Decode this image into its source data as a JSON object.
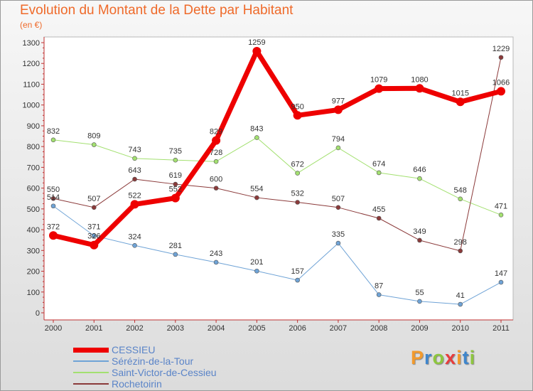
{
  "title": "Evolution du Montant de la Dette par Habitant",
  "unit_label": "(en €)",
  "logo": {
    "text": "Proxiti",
    "colors": [
      "#f39a2c",
      "#3f86cc",
      "#8ec63f",
      "#e83c3c",
      "#f39a2c",
      "#3f86cc",
      "#8ec63f"
    ]
  },
  "chart_data": {
    "type": "line",
    "title": "Evolution du Montant de la Dette par Habitant",
    "ylabel": "(en €)",
    "xlabel": "",
    "x": [
      "2000",
      "2001",
      "2002",
      "2003",
      "2004",
      "2005",
      "2006",
      "2007",
      "2008",
      "2009",
      "2010",
      "2011"
    ],
    "ylim": [
      0,
      1300
    ],
    "yticks": [
      0,
      100,
      200,
      300,
      400,
      500,
      600,
      700,
      800,
      900,
      1000,
      1100,
      1200,
      1300
    ],
    "grid": false,
    "legend_position": "bottom-left",
    "series": [
      {
        "name": "CESSIEU",
        "color": "#ee0000",
        "width": 7,
        "values": [
          372,
          326,
          522,
          552,
          829,
          1259,
          950,
          977,
          1079,
          1080,
          1015,
          1066
        ],
        "labels": [
          "372",
          "326",
          "522",
          "552",
          "829",
          "1259",
          "950",
          "977",
          "1079",
          "1080",
          "1015",
          "1066"
        ]
      },
      {
        "name": "Sérézin-de-la-Tour",
        "color": "#6fa3d6",
        "width": 1,
        "values": [
          514,
          371,
          324,
          281,
          243,
          201,
          157,
          335,
          87,
          55,
          41,
          147
        ],
        "labels": [
          "514",
          "371",
          "324",
          "281",
          "243",
          "201",
          "157",
          "335",
          "87",
          "55",
          "41",
          "147"
        ]
      },
      {
        "name": "Saint-Victor-de-Cessieu",
        "color": "#a3e070",
        "width": 1,
        "values": [
          832,
          809,
          743,
          735,
          728,
          843,
          672,
          794,
          674,
          646,
          548,
          471
        ],
        "labels": [
          "832",
          "809",
          "743",
          "735",
          "728",
          "843",
          "672",
          "794",
          "674",
          "646",
          "548",
          "471"
        ]
      },
      {
        "name": "Rochetoirin",
        "color": "#8b3a3a",
        "width": 1,
        "values": [
          550,
          507,
          643,
          619,
          600,
          554,
          532,
          507,
          455,
          349,
          298,
          1229
        ],
        "labels": [
          "550",
          "507",
          "643",
          "619",
          "600",
          "554",
          "532",
          "507",
          "455",
          "349",
          "298",
          "1229"
        ]
      }
    ]
  }
}
